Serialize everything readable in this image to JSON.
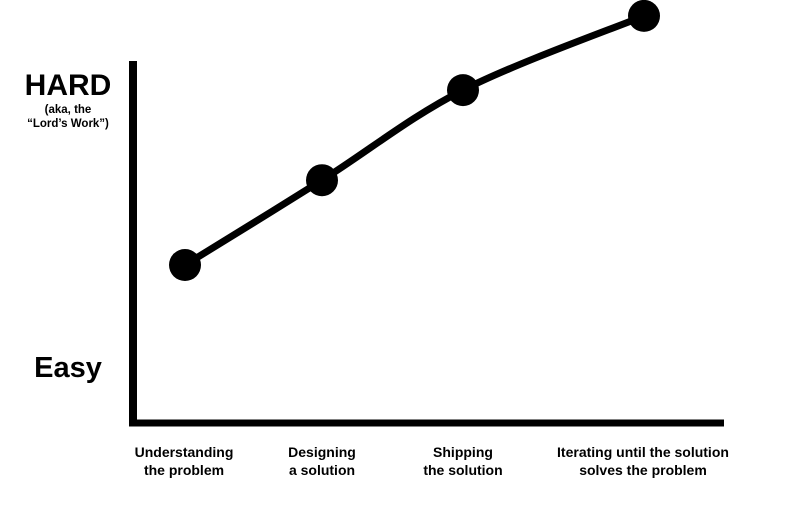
{
  "chart_data": {
    "type": "line",
    "title": "",
    "xlabel": "",
    "ylabel": "",
    "categories": [
      "Understanding\nthe problem",
      "Designing\na solution",
      "Shipping\nthe solution",
      "Iterating until the solution\nsolves the problem"
    ],
    "values": [
      0.5,
      0.66,
      0.83,
      0.97
    ],
    "ylim": [
      0,
      1
    ],
    "y_tick_labels": {
      "high": "HARD",
      "high_note": "(aka, the\n“Lord’s Work”)",
      "low": "Easy"
    },
    "grid": false,
    "legend": "none",
    "colors": {
      "line": "#000000",
      "axis": "#000000",
      "background": "#ffffff"
    }
  }
}
